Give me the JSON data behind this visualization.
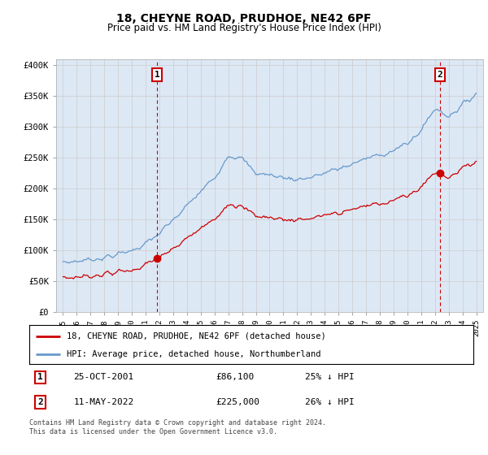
{
  "title": "18, CHEYNE ROAD, PRUDHOE, NE42 6PF",
  "subtitle": "Price paid vs. HM Land Registry's House Price Index (HPI)",
  "ylabel_ticks": [
    "£0",
    "£50K",
    "£100K",
    "£150K",
    "£200K",
    "£250K",
    "£300K",
    "£350K",
    "£400K"
  ],
  "ytick_values": [
    0,
    50000,
    100000,
    150000,
    200000,
    250000,
    300000,
    350000,
    400000
  ],
  "ylim": [
    0,
    410000
  ],
  "xlim_start": 1994.5,
  "xlim_end": 2025.5,
  "grid_color": "#cccccc",
  "hpi_color": "#6699cc",
  "price_color": "#cc0000",
  "plot_bg_color": "#dde8f5",
  "marker1_x": 2001.82,
  "marker1_y": 86100,
  "marker2_x": 2022.37,
  "marker2_y": 225000,
  "transaction1_date": "25-OCT-2001",
  "transaction1_price": "£86,100",
  "transaction1_hpi": "25% ↓ HPI",
  "transaction2_date": "11-MAY-2022",
  "transaction2_price": "£225,000",
  "transaction2_hpi": "26% ↓ HPI",
  "legend_line1": "18, CHEYNE ROAD, PRUDHOE, NE42 6PF (detached house)",
  "legend_line2": "HPI: Average price, detached house, Northumberland",
  "footer": "Contains HM Land Registry data © Crown copyright and database right 2024.\nThis data is licensed under the Open Government Licence v3.0.",
  "background_color": "#ffffff"
}
